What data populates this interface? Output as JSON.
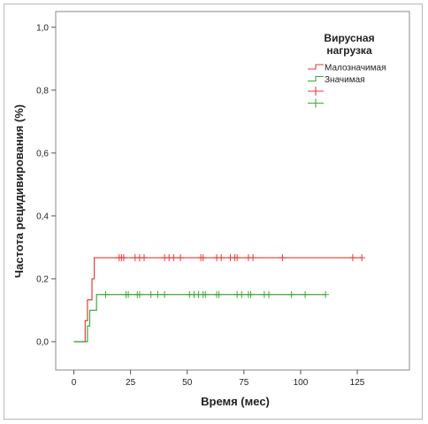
{
  "chart_data": {
    "type": "line",
    "subtype": "kaplan-meier-step",
    "xlabel": "Время (мес)",
    "ylabel": "Частота рецидивирования (%)",
    "xlim": [
      -8,
      148
    ],
    "ylim": [
      -0.09,
      1.05
    ],
    "xticks": [
      {
        "value": 0,
        "label": "0"
      },
      {
        "value": 25,
        "label": "25"
      },
      {
        "value": 50,
        "label": "50"
      },
      {
        "value": 75,
        "label": "75"
      },
      {
        "value": 100,
        "label": "100"
      },
      {
        "value": 125,
        "label": "125"
      }
    ],
    "yticks": [
      {
        "value": 0.0,
        "label": "0,0"
      },
      {
        "value": 0.2,
        "label": "0,2"
      },
      {
        "value": 0.4,
        "label": "0,4"
      },
      {
        "value": 0.6,
        "label": "0,6"
      },
      {
        "value": 0.8,
        "label": "0,8"
      },
      {
        "value": 1.0,
        "label": "1,0"
      }
    ],
    "grid": false,
    "legend": {
      "title_lines": [
        "Вирусная",
        "нагрузка"
      ],
      "placement": "top-right",
      "entries": [
        {
          "label": "Малозначимая",
          "kind": "line",
          "series": 0
        },
        {
          "label": "Значимая",
          "kind": "line",
          "series": 1
        },
        {
          "label": "",
          "kind": "censor",
          "series": 0
        },
        {
          "label": "",
          "kind": "censor",
          "series": 1
        }
      ]
    },
    "series": [
      {
        "color": "#e0403a",
        "steps": [
          [
            0,
            0.0
          ],
          [
            5,
            0.067
          ],
          [
            6,
            0.133
          ],
          [
            8,
            0.2
          ],
          [
            9,
            0.267
          ],
          [
            127,
            0.267
          ]
        ],
        "censored": [
          20,
          21,
          22,
          27,
          29,
          31,
          40,
          42,
          44,
          47,
          56,
          57,
          63,
          65,
          69,
          71,
          72,
          77,
          79,
          92,
          123,
          127
        ]
      },
      {
        "color": "#3caa3c",
        "steps": [
          [
            0,
            0.0
          ],
          [
            6,
            0.05
          ],
          [
            7,
            0.1
          ],
          [
            10,
            0.15
          ],
          [
            111,
            0.15
          ]
        ],
        "censored": [
          14,
          23,
          24,
          28,
          29,
          34,
          37,
          40,
          51,
          53,
          55,
          57,
          58,
          63,
          64,
          72,
          74,
          77,
          78,
          84,
          86,
          96,
          102,
          111
        ]
      }
    ]
  }
}
